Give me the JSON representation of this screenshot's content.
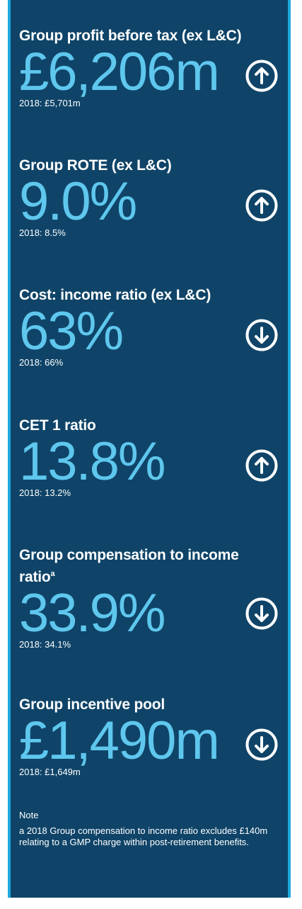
{
  "metrics": [
    {
      "title": "Group profit before tax (ex L&C)",
      "value": "£6,206m",
      "comparison": "2018: £5,701m",
      "trend": "up",
      "icon": "arrow-up-circle-icon"
    },
    {
      "title": "Group ROTE (ex L&C)",
      "value": "9.0%",
      "comparison": "2018: 8.5%",
      "trend": "up",
      "icon": "arrow-up-circle-icon"
    },
    {
      "title": "Cost: income ratio (ex L&C)",
      "value": "63%",
      "comparison": "2018: 66%",
      "trend": "down",
      "icon": "arrow-down-circle-icon"
    },
    {
      "title": "CET 1 ratio",
      "value": "13.8%",
      "comparison": "2018: 13.2%",
      "trend": "up",
      "icon": "arrow-up-circle-icon"
    },
    {
      "title": "Group compensation to income ratio",
      "footnote_marker": "a",
      "value": "33.9%",
      "comparison": "2018: 34.1%",
      "trend": "down",
      "icon": "arrow-down-circle-icon"
    },
    {
      "title": "Group incentive pool",
      "value": "£1,490m",
      "comparison": "2018: £1,649m",
      "trend": "down",
      "icon": "arrow-down-circle-icon"
    }
  ],
  "note": {
    "heading": "Note",
    "text": "a 2018 Group compensation to income ratio excludes £140m relating to a GMP charge within post-retirement benefits."
  },
  "colors": {
    "panel_background": "#0f4468",
    "panel_border": "#1fa8de",
    "value_text": "#5fc7ee",
    "text": "#ffffff"
  }
}
